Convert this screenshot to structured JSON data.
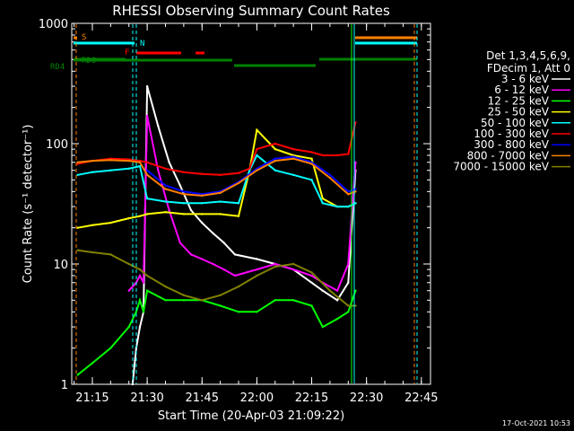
{
  "chart_data": {
    "type": "line",
    "title": "RHESSI Observing Summary Count Rates",
    "xlabel": "Start Time (20-Apr-03 21:09:22)",
    "ylabel": "Count Rate (s⁻¹ detector⁻¹)",
    "y_scale": "log",
    "ylim": [
      1,
      1000
    ],
    "xlim": [
      "21:09:22",
      "22:47:30"
    ],
    "x_ticks": [
      "21:15",
      "21:30",
      "21:45",
      "22:00",
      "22:15",
      "22:30",
      "22:45"
    ],
    "y_ticks": [
      "1",
      "10",
      "100",
      "1000"
    ],
    "legend_header": [
      "Det 1,3,4,5,6,9,",
      "FDecim 1, Att 0"
    ],
    "series": [
      {
        "name": "3 - 6 keV",
        "color": "#ffffff",
        "x": [
          "21:26",
          "21:27",
          "21:28",
          "21:29",
          "21:30",
          "21:33",
          "21:36",
          "21:39",
          "21:42",
          "21:45",
          "21:48",
          "21:51",
          "21:54",
          "22:00",
          "22:05",
          "22:10",
          "22:15",
          "22:18",
          "22:22",
          "22:25",
          "22:27"
        ],
        "y": [
          1,
          2,
          3,
          4,
          300,
          140,
          70,
          45,
          28,
          22,
          18,
          15,
          12,
          11,
          10,
          9,
          7,
          6,
          5,
          7,
          60
        ]
      },
      {
        "name": "6 - 12 keV",
        "color": "#ff00ff",
        "x": [
          "21:25",
          "21:27",
          "21:28",
          "21:29",
          "21:30",
          "21:33",
          "21:36",
          "21:39",
          "21:42",
          "21:45",
          "21:48",
          "21:51",
          "21:54",
          "22:00",
          "22:05",
          "22:10",
          "22:15",
          "22:18",
          "22:22",
          "22:25",
          "22:27"
        ],
        "y": [
          6,
          7,
          8,
          7,
          170,
          60,
          28,
          15,
          12,
          11,
          10,
          9,
          8,
          9,
          10,
          9,
          8,
          7,
          6,
          10,
          70
        ]
      },
      {
        "name": "12 - 25 keV",
        "color": "#00ff00",
        "x": [
          "21:11",
          "21:15",
          "21:20",
          "21:25",
          "21:27",
          "21:28",
          "21:29",
          "21:30",
          "21:35",
          "21:40",
          "21:45",
          "21:50",
          "21:55",
          "22:00",
          "22:05",
          "22:10",
          "22:15",
          "22:18",
          "22:22",
          "22:25",
          "22:27"
        ],
        "y": [
          1.2,
          1.5,
          2,
          3,
          4,
          5,
          4,
          6,
          5,
          5,
          5,
          4.5,
          4,
          4,
          5,
          5,
          4.5,
          3,
          3.5,
          4,
          6
        ]
      },
      {
        "name": "25 - 50 keV",
        "color": "#ffff00",
        "x": [
          "21:11",
          "21:15",
          "21:20",
          "21:25",
          "21:28",
          "21:30",
          "21:35",
          "21:40",
          "21:45",
          "21:50",
          "21:55",
          "21:58",
          "22:00",
          "22:05",
          "22:10",
          "22:15",
          "22:18",
          "22:22",
          "22:25",
          "22:27"
        ],
        "y": [
          20,
          21,
          22,
          24,
          25,
          26,
          27,
          26,
          26,
          26,
          25,
          60,
          130,
          90,
          80,
          75,
          35,
          30,
          30,
          32
        ]
      },
      {
        "name": "50 - 100 keV",
        "color": "#00ffff",
        "x": [
          "21:11",
          "21:15",
          "21:20",
          "21:25",
          "21:28",
          "21:30",
          "21:35",
          "21:40",
          "21:45",
          "21:50",
          "21:55",
          "21:58",
          "22:00",
          "22:05",
          "22:10",
          "22:15",
          "22:18",
          "22:22",
          "22:25",
          "22:27"
        ],
        "y": [
          55,
          58,
          60,
          62,
          65,
          35,
          33,
          32,
          32,
          33,
          32,
          60,
          80,
          60,
          55,
          50,
          32,
          30,
          30,
          32
        ]
      },
      {
        "name": "100 - 300 keV",
        "color": "#ff0000",
        "x": [
          "21:11",
          "21:15",
          "21:20",
          "21:25",
          "21:28",
          "21:30",
          "21:35",
          "21:40",
          "21:45",
          "21:50",
          "21:55",
          "21:58",
          "22:00",
          "22:05",
          "22:10",
          "22:15",
          "22:18",
          "22:22",
          "22:25",
          "22:27"
        ],
        "y": [
          68,
          72,
          75,
          74,
          72,
          70,
          62,
          58,
          56,
          55,
          57,
          62,
          90,
          100,
          90,
          85,
          80,
          80,
          82,
          150
        ]
      },
      {
        "name": "300 - 800 keV",
        "color": "#0000ff",
        "x": [
          "21:30",
          "21:35",
          "21:40",
          "21:45",
          "21:50",
          "21:55",
          "22:00",
          "22:05",
          "22:10",
          "22:15",
          "22:20",
          "22:25",
          "22:27"
        ],
        "y": [
          60,
          45,
          40,
          38,
          40,
          48,
          62,
          75,
          78,
          70,
          55,
          40,
          42
        ]
      },
      {
        "name": "800 - 7000 keV",
        "color": "#ff8000",
        "x": [
          "21:11",
          "21:15",
          "21:20",
          "21:25",
          "21:28",
          "21:30",
          "21:35",
          "21:40",
          "21:45",
          "21:50",
          "21:55",
          "22:00",
          "22:05",
          "22:10",
          "22:15",
          "22:20",
          "22:25",
          "22:27"
        ],
        "y": [
          70,
          72,
          73,
          72,
          70,
          55,
          42,
          38,
          37,
          39,
          47,
          60,
          72,
          75,
          68,
          52,
          38,
          40
        ]
      },
      {
        "name": "7000 - 15000 keV",
        "color": "#808000",
        "x": [
          "21:11",
          "21:15",
          "21:20",
          "21:25",
          "21:28",
          "21:30",
          "21:35",
          "21:40",
          "21:45",
          "21:50",
          "21:55",
          "22:00",
          "22:05",
          "22:10",
          "22:15",
          "22:20",
          "22:25",
          "22:27"
        ],
        "y": [
          13,
          12.5,
          12,
          10,
          9,
          8,
          6.5,
          5.5,
          5,
          5.5,
          6.5,
          8,
          9.5,
          10,
          8.5,
          6,
          4.5,
          4.5
        ]
      }
    ],
    "flags": [
      {
        "label": "S",
        "color": "#ff8000"
      },
      {
        "label": "N",
        "color": "#00ffff"
      },
      {
        "label": "F",
        "color": "#ff0000"
      },
      {
        "label": "RDO",
        "color": "#008000"
      },
      {
        "label": "RD4",
        "color": "#008000"
      }
    ],
    "date_stamp": "17-Oct-2021 10:53"
  }
}
